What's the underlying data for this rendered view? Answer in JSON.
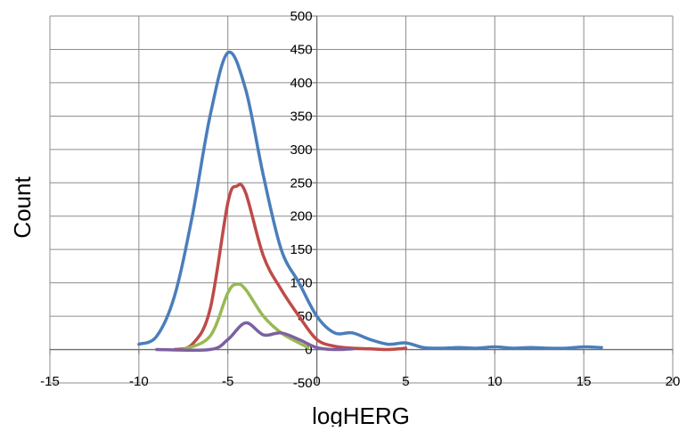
{
  "chart_data": {
    "type": "line",
    "title": "",
    "xlabel": "logHERG",
    "ylabel": "Count",
    "xlim": [
      -15,
      20
    ],
    "ylim": [
      -50,
      500
    ],
    "xticks": [
      -15,
      -10,
      -5,
      0,
      5,
      10,
      15,
      20
    ],
    "yticks": [
      -50,
      0,
      50,
      100,
      150,
      200,
      250,
      300,
      350,
      400,
      450,
      500
    ],
    "xtick_labels": [
      "-15",
      "-10",
      "-5",
      "0",
      "5",
      "10",
      "15",
      "20"
    ],
    "ytick_labels": [
      "-50",
      "0",
      "50",
      "100",
      "150",
      "200",
      "250",
      "300",
      "350",
      "400",
      "450",
      "500"
    ],
    "grid": {
      "horizontal": true,
      "vertical": true
    },
    "legend": "none",
    "series": [
      {
        "color": "#4a7ebb",
        "points": [
          [
            -10,
            8
          ],
          [
            -9,
            20
          ],
          [
            -8,
            80
          ],
          [
            -7,
            200
          ],
          [
            -6,
            350
          ],
          [
            -5,
            445
          ],
          [
            -4,
            390
          ],
          [
            -3,
            260
          ],
          [
            -2,
            150
          ],
          [
            -1,
            100
          ],
          [
            0,
            50
          ],
          [
            1,
            25
          ],
          [
            2,
            25
          ],
          [
            3,
            15
          ],
          [
            4,
            8
          ],
          [
            5,
            10
          ],
          [
            6,
            3
          ],
          [
            7,
            2
          ],
          [
            8,
            3
          ],
          [
            9,
            2
          ],
          [
            10,
            4
          ],
          [
            11,
            2
          ],
          [
            12,
            3
          ],
          [
            13,
            2
          ],
          [
            14,
            2
          ],
          [
            15,
            4
          ],
          [
            16,
            3
          ]
        ]
      },
      {
        "color": "#be4b48",
        "points": [
          [
            -8,
            0
          ],
          [
            -7,
            8
          ],
          [
            -6,
            60
          ],
          [
            -5,
            220
          ],
          [
            -4.5,
            245
          ],
          [
            -4,
            235
          ],
          [
            -3,
            140
          ],
          [
            -2,
            90
          ],
          [
            -1,
            50
          ],
          [
            0,
            15
          ],
          [
            1,
            5
          ],
          [
            2,
            2
          ],
          [
            3,
            1
          ],
          [
            4,
            0
          ],
          [
            5,
            2
          ]
        ]
      },
      {
        "color": "#98b954",
        "points": [
          [
            -7.5,
            0
          ],
          [
            -6,
            20
          ],
          [
            -5,
            85
          ],
          [
            -4.5,
            98
          ],
          [
            -4,
            90
          ],
          [
            -3,
            50
          ],
          [
            -2,
            25
          ],
          [
            -1,
            10
          ],
          [
            -0.5,
            3
          ]
        ]
      },
      {
        "color": "#7d60a0",
        "points": [
          [
            -9,
            0
          ],
          [
            -6,
            0
          ],
          [
            -5,
            15
          ],
          [
            -4,
            40
          ],
          [
            -3,
            22
          ],
          [
            -2,
            25
          ],
          [
            -1,
            15
          ],
          [
            0,
            3
          ],
          [
            1,
            0
          ],
          [
            2,
            1
          ]
        ]
      }
    ]
  }
}
